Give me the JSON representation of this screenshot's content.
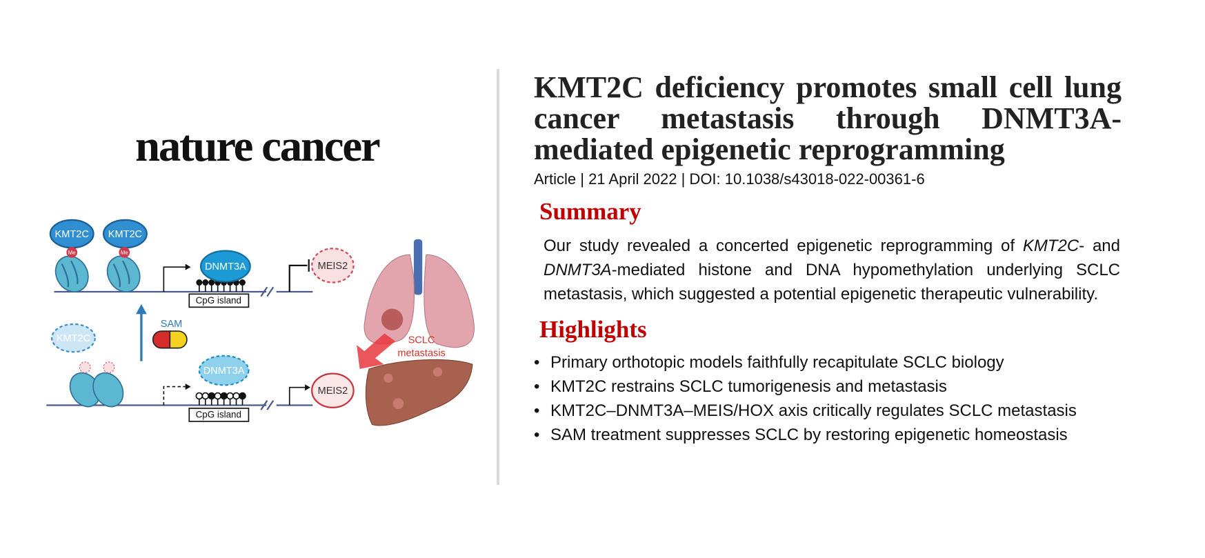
{
  "logo": "nature cancer",
  "diagram": {
    "labels": {
      "kmt2c": "KMT2C",
      "me": "Me",
      "dnmt3a": "DNMT3A",
      "cpg": "CpG island",
      "meis2": "MEIS2",
      "sam": "SAM",
      "sclc": "SCLC",
      "metastasis": "metastasis"
    }
  },
  "header": {
    "title": "KMT2C deficiency promotes small cell lung cancer metastasis through DNMT3A-mediated epigenetic reprogramming",
    "meta": "Article | 21 April 2022 | DOI: 10.1038/s43018-022-00361-6"
  },
  "summary": {
    "heading": "Summary",
    "segments": [
      "Our study revealed a concerted epigenetic reprogramming of ",
      "KMT2C",
      "- and ",
      "DNMT3A",
      "-mediated histone and DNA hypomethylation underlying SCLC metastasis, which suggested a potential epigenetic therapeutic vulnerability."
    ]
  },
  "highlights": {
    "heading": "Highlights",
    "items": [
      "Primary orthotopic models faithfully recapitulate SCLC biology",
      "KMT2C restrains SCLC tumorigenesis and metastasis",
      "KMT2C–DNMT3A–MEIS/HOX axis critically regulates SCLC metastasis",
      "SAM treatment suppresses SCLC by restoring epigenetic homeostasis"
    ]
  }
}
